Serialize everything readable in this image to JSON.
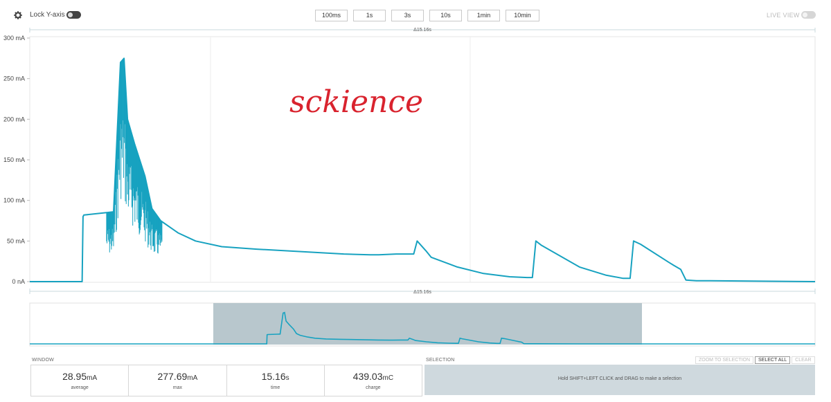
{
  "toolbar": {
    "lock_label": "Lock Y-axis",
    "live_label": "LIVE VIEW",
    "zoom_buttons": [
      "100ms",
      "1s",
      "3s",
      "10s",
      "1min",
      "10min"
    ]
  },
  "chart_data": {
    "type": "line",
    "ylabel": "",
    "xlabel": "",
    "ylim": [
      0,
      300
    ],
    "y_ticks": [
      "300 mA",
      "250 mA",
      "200 mA",
      "150 mA",
      "100 mA",
      "50 mA",
      "0 nA"
    ],
    "top_label": "Δ15.16s",
    "bottom_label": "Δ15.16s",
    "annotation": "sckience",
    "series": [
      {
        "color": "#17a2c0",
        "x": [
          0.0,
          3.0,
          3.05,
          3.1,
          4.4,
          4.8,
          5.2,
          5.4,
          5.6,
          6.0,
          6.6,
          7.0,
          7.5,
          8.5,
          9.5,
          11.0,
          13.0,
          18.0,
          19.5,
          20.0,
          21.0,
          22.0,
          22.2,
          22.7,
          23.0,
          24.5,
          26.0,
          27.5,
          28.5,
          28.8,
          29.0,
          29.3,
          31.5,
          33.0,
          34.0,
          34.4,
          34.6,
          35.0,
          36.6,
          36.9,
          37.3,
          37.6,
          38.2,
          39.0,
          45.0
        ],
        "y": [
          0,
          0,
          80,
          82,
          85,
          86,
          270,
          275,
          200,
          170,
          130,
          90,
          75,
          60,
          50,
          43,
          40,
          34,
          33,
          33,
          34,
          34,
          50,
          38,
          30,
          18,
          10,
          6,
          5,
          5,
          50,
          45,
          18,
          8,
          4,
          4,
          50,
          46,
          24,
          20,
          15,
          2,
          1,
          1,
          0
        ]
      }
    ]
  },
  "stats": {
    "window_label": "WINDOW",
    "average": {
      "value": "28.95",
      "unit": "mA",
      "label": "average"
    },
    "max": {
      "value": "277.69",
      "unit": "mA",
      "label": "max"
    },
    "time": {
      "value": "15.16",
      "unit": "s",
      "label": "time"
    },
    "charge": {
      "value": "439.03",
      "unit": "mC",
      "label": "charge"
    }
  },
  "selection": {
    "label": "SELECTION",
    "zoom_to_selection": "ZOOM TO SELECTION",
    "select_all": "SELECT ALL",
    "clear": "CLEAR",
    "hint": "Hold SHIFT+LEFT CLICK and DRAG to make a selection"
  }
}
